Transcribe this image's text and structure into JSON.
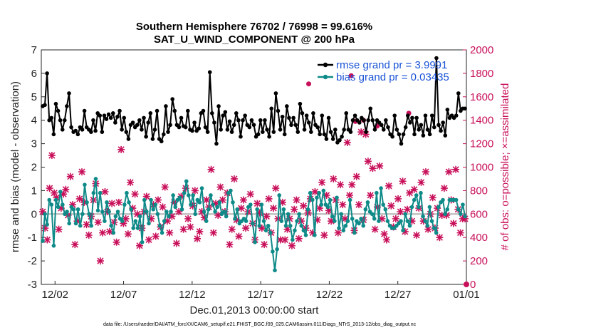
{
  "chart_data": {
    "type": "line",
    "title": "Southern Hemisphere 76702 / 76998 = 99.616%",
    "subtitle": "SAT_U_WIND_COMPONENT @ 200 hPa",
    "xlabel": "Dec.01,2013 00:00:00 start",
    "ylabel": "rmse and bias (model - observation)",
    "ylabel_right": "# of obs: o=possible; ×=assimilated",
    "xlim": [
      0,
      31
    ],
    "ylim": [
      -3,
      7
    ],
    "ylim_right": [
      0,
      2000
    ],
    "x_ticks": [
      {
        "x": 1,
        "label": "12/02"
      },
      {
        "x": 6,
        "label": "12/07"
      },
      {
        "x": 11,
        "label": "12/12"
      },
      {
        "x": 16,
        "label": "12/17"
      },
      {
        "x": 21,
        "label": "12/22"
      },
      {
        "x": 26,
        "label": "12/27"
      },
      {
        "x": 31,
        "label": "01/01"
      }
    ],
    "y_ticks": [
      "-3",
      "-2",
      "-1",
      "0",
      "1",
      "2",
      "3",
      "4",
      "5",
      "6",
      "7"
    ],
    "y_ticks_right": [
      "0",
      "200",
      "400",
      "600",
      "800",
      "1000",
      "1200",
      "1400",
      "1600",
      "1800",
      "2000"
    ],
    "footnote": "data file: /Users/raeder/DAI/ATM_forcXX/CAM6_setup/f.e21.FHIST_BGC.f09_025.CAM6assim.011/Diags_NTrS_2013-12/obs_diag_output.nc",
    "grid": false,
    "legend_position": "top-right",
    "series": [
      {
        "name": "rmse grand pr = 3.9991",
        "color": "#000000",
        "axis": "left",
        "values": [
          4.6,
          4.65,
          6.0,
          4.0,
          4.1,
          3.4,
          4.7,
          4.4,
          4.0,
          3.6,
          4.0,
          4.6,
          5.15,
          3.7,
          3.5,
          3.55,
          3.4,
          3.7,
          3.6,
          4.4,
          3.7,
          3.6,
          3.5,
          4.0,
          3.55,
          4.3,
          4.2,
          3.5,
          4.2,
          4.05,
          4.25,
          4.1,
          4.3,
          3.9,
          4.15,
          4.4,
          3.6,
          4.1,
          3.5,
          3.2,
          3.8,
          3.9,
          3.7,
          3.8,
          4.0,
          3.6,
          4.1,
          3.3,
          3.9,
          4.3,
          3.2,
          3.6,
          4.4,
          3.2,
          3.1,
          3.4,
          4.6,
          3.5,
          3.8,
          4.9,
          4.4,
          3.8,
          3.7,
          4.1,
          3.75,
          3.7,
          4.4,
          3.6,
          3.55,
          3.9,
          3.55,
          3.65,
          4.3,
          4.4,
          3.7,
          3.5,
          6.05,
          4.3,
          3.9,
          3.0,
          4.6,
          3.6,
          4.2,
          4.35,
          3.6,
          3.95,
          3.5,
          3.8,
          4.3,
          4.0,
          3.3,
          4.0,
          4.2,
          3.8,
          3.7,
          4.0,
          3.8,
          3.3,
          3.4,
          4.0,
          3.5,
          4.0,
          3.6,
          3.3,
          4.5,
          3.5,
          5.15,
          4.4,
          3.6,
          4.15,
          3.4,
          4.6,
          4.1,
          3.8,
          4.1,
          3.8,
          3.5,
          4.7,
          4.3,
          3.6,
          4.2,
          3.9,
          3.5,
          4.3,
          3.8,
          3.7,
          3.4,
          4.2,
          3.4,
          3.2,
          4.1,
          3.5,
          3.2,
          3.6,
          3.05,
          3.15,
          3.3,
          3.6,
          4.3,
          3.6,
          3.5,
          4.0,
          4.2,
          4.0,
          3.9,
          4.1,
          4.0,
          3.5,
          4.0,
          4.5,
          4.0,
          3.6,
          4.0,
          3.9,
          3.8,
          3.6,
          4.0,
          3.7,
          3.4,
          3.3,
          4.2,
          3.6,
          3.4,
          3.0,
          3.4,
          3.7,
          4.2,
          3.9,
          4.1,
          3.4,
          4.1,
          3.6,
          3.8,
          3.35,
          4.2,
          3.6,
          3.4,
          4.2,
          3.7,
          6.65,
          3.8,
          3.55,
          3.9,
          3.35,
          4.45,
          4.1,
          4.2,
          4.1,
          4.2,
          5.15,
          4.4,
          4.5,
          4.5
        ]
      },
      {
        "name": "bias grand pr = 0.03435",
        "color": "#0e8a88",
        "axis": "left",
        "values": [
          -1.15,
          0.0,
          -0.45,
          0.6,
          0.4,
          -1.35,
          0.6,
          0.3,
          0.95,
          0.4,
          0.0,
          0.1,
          -0.4,
          0.3,
          0.2,
          -0.4,
          0.2,
          -0.5,
          0.0,
          1.25,
          0.5,
          0.0,
          -0.5,
          0.9,
          1.5,
          0.15,
          0.9,
          0.1,
          -0.3,
          0.5,
          0.1,
          -0.5,
          -0.8,
          -0.1,
          0.1,
          -0.2,
          -0.3,
          0.4,
          0.9,
          0.5,
          0.2,
          -0.6,
          -0.3,
          -0.6,
          -0.1,
          -1.2,
          0.6,
          0.1,
          -0.4,
          0.6,
          0.2,
          0.4,
          0.0,
          -0.5,
          -0.8,
          -0.3,
          0.1,
          -0.1,
          0.1,
          0.8,
          0.3,
          0.6,
          0.7,
          0.2,
          0.9,
          1.4,
          0.8,
          0.4,
          0.8,
          0.0,
          0.6,
          0.5,
          1.1,
          0.1,
          -0.3,
          0.2,
          0.8,
          0.4,
          0.1,
          0.3,
          0.5,
          0.0,
          0.1,
          -0.1,
          0.9,
          1.0,
          0.5,
          -0.2,
          0.2,
          -0.4,
          -0.3,
          -0.2,
          -0.3,
          0.3,
          0.4,
          -0.4,
          -1.2,
          0.2,
          -0.5,
          0.4,
          -0.3,
          -0.7,
          -0.5,
          -0.8,
          -1.6,
          -2.4,
          -1.5,
          0.8,
          -0.3,
          0.2,
          -0.5,
          0.0,
          -0.5,
          -1.1,
          -0.7,
          -0.3,
          0.0,
          -0.5,
          -0.7,
          -0.9,
          0.2,
          0.9,
          0.6,
          -0.9,
          0.7,
          0.9,
          0.4,
          1.0,
          0.4,
          0.3,
          0.6,
          -0.1,
          -0.3,
          0.7,
          -0.6,
          0.0,
          -0.7,
          -0.5,
          -0.3,
          0.6,
          -0.2,
          -0.8,
          -0.3,
          -0.4,
          -0.2,
          -0.5,
          0.2,
          0.5,
          0.1,
          0.0,
          -0.2,
          0.9,
          -0.3,
          1.1,
          0.4,
          0.2,
          -0.3,
          -0.5,
          -0.6,
          -0.6,
          -0.5,
          -0.4,
          -0.3,
          -0.7,
          0.0,
          -0.3,
          -0.5,
          0.3,
          0.6,
          0.8,
          0.3,
          0.9,
          -0.1,
          -0.3,
          -0.5,
          0.3,
          -0.3,
          -0.6,
          -0.8,
          0.3,
          0.5,
          0.6,
          0.0,
          0.2,
          0.6,
          0.6,
          0.6,
          0.6,
          0.2,
          0.0,
          0.4,
          -0.1
        ]
      },
      {
        "name": "possible",
        "color": "#c8105a",
        "axis": "right",
        "marker": "o",
        "values": [
          1710,
          1780,
          1390,
          1400,
          1350,
          1460
        ]
      },
      {
        "name": "assimilated",
        "color": "#c8105a",
        "axis": "right",
        "marker": "x",
        "values": [
          620,
          480,
          380,
          820,
          1100,
          780,
          740,
          470,
          650,
          770,
          810,
          590,
          920,
          680,
          340,
          540,
          730,
          960,
          700,
          510,
          420,
          580,
          720,
          860,
          530,
          200,
          440,
          790,
          620,
          450,
          690,
          530,
          360,
          700,
          1150,
          520,
          560,
          430,
          870,
          650,
          770,
          600,
          330,
          480,
          620,
          750,
          380,
          560,
          680,
          410,
          720,
          490,
          660,
          830,
          540,
          440,
          580,
          700,
          350,
          620,
          750,
          470,
          820,
          560,
          490,
          670,
          800,
          390,
          450,
          620,
          570,
          720,
          660,
          980,
          440,
          690,
          590,
          830,
          720,
          620,
          780,
          340,
          470,
          900,
          550,
          410,
          650,
          720,
          480,
          620,
          770,
          520,
          380,
          690,
          610,
          480,
          340,
          580,
          730,
          440,
          650,
          820,
          560,
          380,
          700,
          380,
          470,
          560,
          330,
          640,
          720,
          390,
          540,
          670,
          480,
          610,
          730,
          440,
          790,
          550,
          650,
          870,
          420,
          760,
          630,
          540,
          900,
          720,
          440,
          850,
          680,
          560,
          1210,
          760,
          850,
          460,
          920,
          680,
          1300,
          550,
          1280,
          1050,
          760,
          990,
          470,
          660,
          1010,
          560,
          430,
          380,
          840,
          670,
          490,
          560,
          730,
          620,
          880,
          450,
          640,
          780,
          540,
          810,
          420,
          650,
          870,
          540,
          960,
          470,
          600,
          740,
          480,
          650,
          400,
          590,
          820,
          590,
          960,
          720,
          520,
          980,
          640,
          440,
          560,
          560
        ]
      }
    ]
  }
}
